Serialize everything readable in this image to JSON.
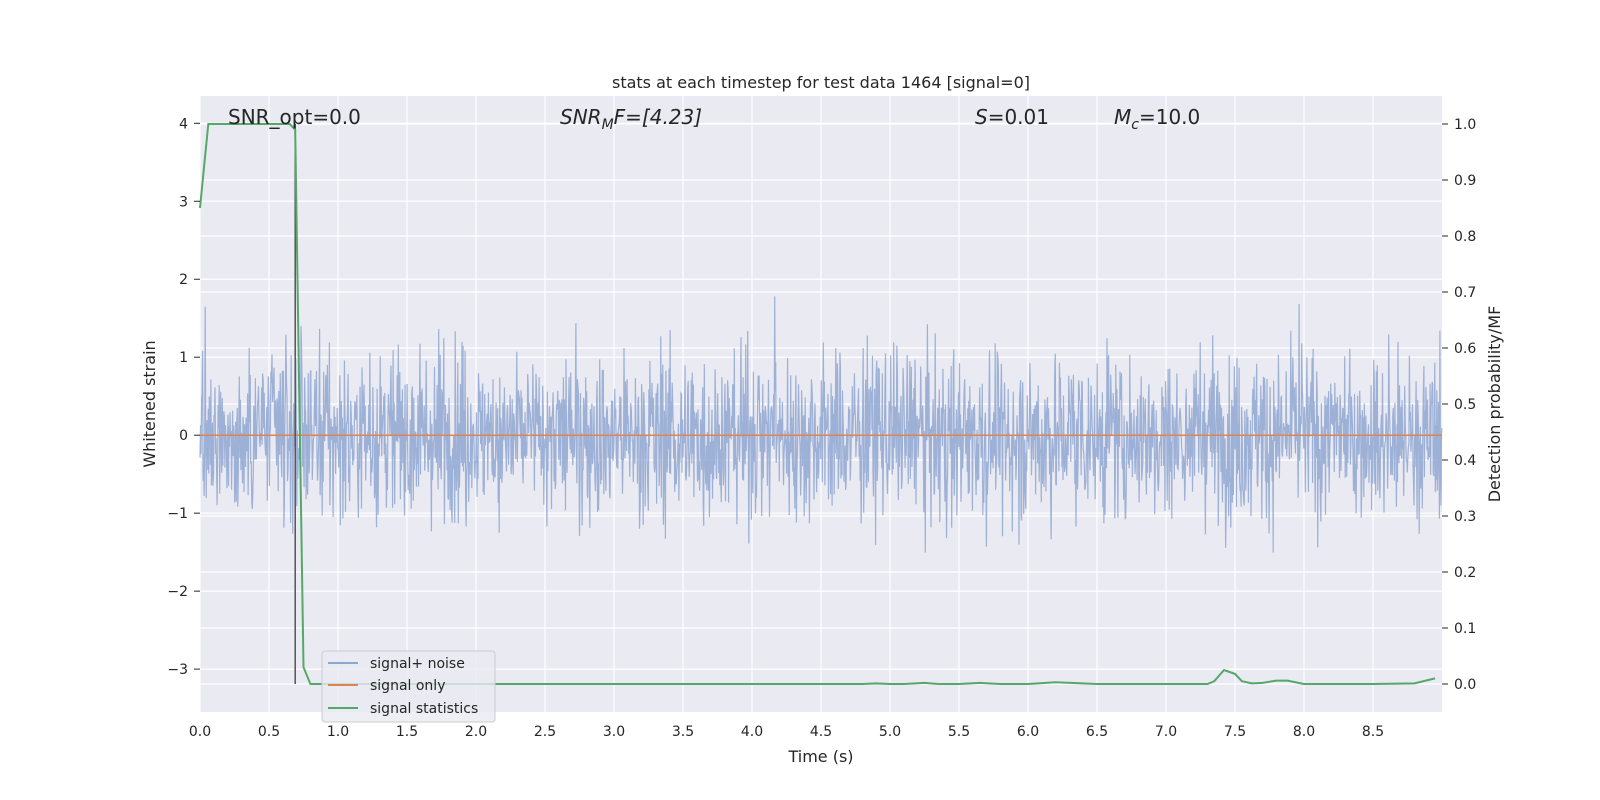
{
  "chart_data": {
    "type": "line",
    "title": "stats at each timestep for test data 1464 [signal=0]",
    "xlabel": "Time (s)",
    "ylabel": "Whitened strain",
    "y2label": "Detection probability/MF",
    "xlim": [
      0.0,
      9.0
    ],
    "ylim": [
      -3.55,
      4.35
    ],
    "y2lim": [
      -0.05,
      1.05
    ],
    "grid": true,
    "legend_position": "bottom-left",
    "x_ticks": [
      "0.0",
      "0.5",
      "1.0",
      "1.5",
      "2.0",
      "2.5",
      "3.0",
      "3.5",
      "4.0",
      "4.5",
      "5.0",
      "5.5",
      "6.0",
      "6.5",
      "7.0",
      "7.5",
      "8.0",
      "8.5"
    ],
    "y_ticks": [
      "−3",
      "−2",
      "−1",
      "0",
      "1",
      "2",
      "3",
      "4"
    ],
    "y2_ticks": [
      "0.0",
      "0.1",
      "0.2",
      "0.3",
      "0.4",
      "0.5",
      "0.6",
      "0.7",
      "0.8",
      "0.9",
      "1.0"
    ],
    "annotations": {
      "snr_opt": "SNR_opt=0.0",
      "snr_mf_main": "SNR",
      "snr_mf_sub": "M",
      "snr_mf_rest": "F=[4.23]",
      "s_var": "S",
      "s_rest": "=0.01",
      "mc_var": "M",
      "mc_sub": "c",
      "mc_rest": "=10.0"
    },
    "vline_x": 0.69,
    "series": [
      {
        "name": "signal+ noise",
        "color": "#8fa6d1",
        "description_range": [
          -2.9,
          4.0
        ],
        "typical_envelope": 1.6
      },
      {
        "name": "signal only",
        "color": "#dd8452",
        "values_constant": 0.0
      },
      {
        "name": "signal statistics",
        "color": "#55a868",
        "axis": "right",
        "x": [
          0.0,
          0.06,
          0.12,
          0.2,
          0.3,
          0.4,
          0.5,
          0.6,
          0.65,
          0.69,
          0.72,
          0.75,
          0.8,
          0.9,
          1.0,
          2.0,
          3.0,
          4.0,
          4.8,
          4.9,
          5.0,
          5.1,
          5.25,
          5.35,
          5.5,
          5.65,
          5.8,
          6.0,
          6.2,
          6.5,
          7.0,
          7.3,
          7.35,
          7.42,
          7.5,
          7.55,
          7.62,
          7.7,
          7.8,
          7.88,
          8.0,
          8.5,
          8.8,
          8.95
        ],
        "values": [
          0.85,
          1.0,
          1.0,
          1.0,
          1.0,
          1.0,
          1.0,
          1.0,
          1.0,
          0.99,
          0.5,
          0.03,
          0.0,
          0.0,
          0.0,
          0.0,
          0.0,
          0.0,
          0.0,
          0.001,
          0.0,
          0.0,
          0.002,
          0.0,
          0.0,
          0.002,
          0.0,
          0.0,
          0.003,
          0.0,
          0.0,
          0.0,
          0.005,
          0.025,
          0.018,
          0.005,
          0.001,
          0.002,
          0.006,
          0.006,
          0.0,
          0.0,
          0.001,
          0.01
        ]
      }
    ]
  }
}
